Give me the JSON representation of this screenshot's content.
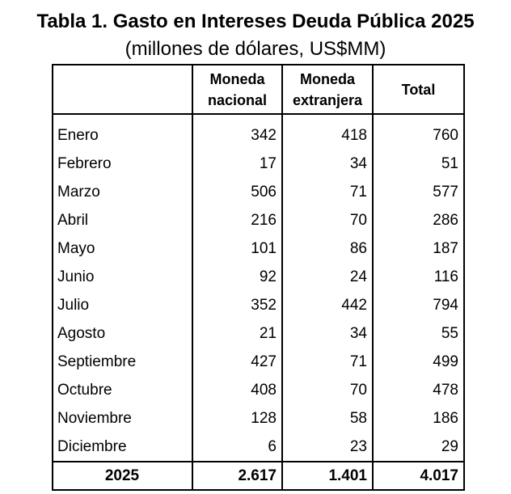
{
  "title": "Tabla 1. Gasto en Intereses Deuda Pública 2025",
  "subtitle": "(millones de dólares, US$MM)",
  "headers": {
    "col1": "",
    "col2_line1": "Moneda",
    "col2_line2": "nacional",
    "col3_line1": "Moneda",
    "col3_line2": "extranjera",
    "col4": "Total"
  },
  "rows": [
    {
      "month": "Enero",
      "nacional": "342",
      "extranjera": "418",
      "total": "760"
    },
    {
      "month": "Febrero",
      "nacional": "17",
      "extranjera": "34",
      "total": "51"
    },
    {
      "month": "Marzo",
      "nacional": "506",
      "extranjera": "71",
      "total": "577"
    },
    {
      "month": "Abril",
      "nacional": "216",
      "extranjera": "70",
      "total": "286"
    },
    {
      "month": "Mayo",
      "nacional": "101",
      "extranjera": "86",
      "total": "187"
    },
    {
      "month": "Junio",
      "nacional": "92",
      "extranjera": "24",
      "total": "116"
    },
    {
      "month": "Julio",
      "nacional": "352",
      "extranjera": "442",
      "total": "794"
    },
    {
      "month": "Agosto",
      "nacional": "21",
      "extranjera": "34",
      "total": "55"
    },
    {
      "month": "Septiembre",
      "nacional": "427",
      "extranjera": "71",
      "total": "499"
    },
    {
      "month": "Octubre",
      "nacional": "408",
      "extranjera": "70",
      "total": "478"
    },
    {
      "month": "Noviembre",
      "nacional": "128",
      "extranjera": "58",
      "total": "186"
    },
    {
      "month": "Diciembre",
      "nacional": "6",
      "extranjera": "23",
      "total": "29"
    }
  ],
  "totals": {
    "label": "2025",
    "nacional": "2.617",
    "extranjera": "1.401",
    "total": "4.017"
  }
}
